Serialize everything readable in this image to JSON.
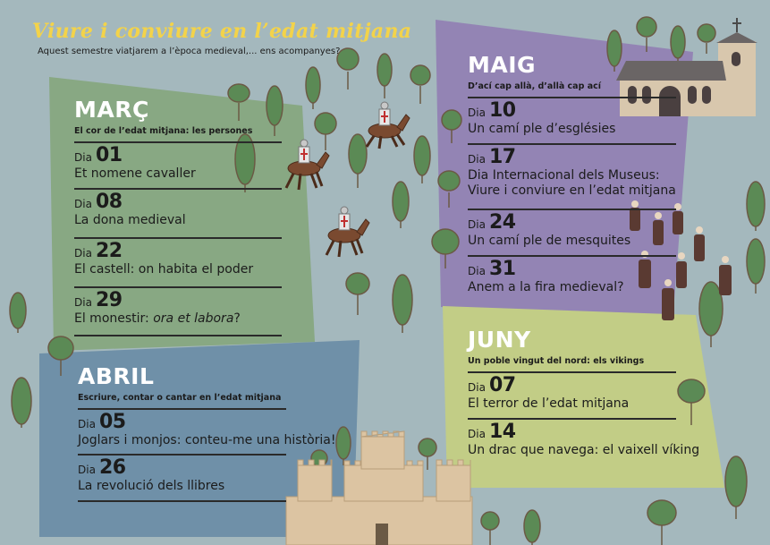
{
  "header": {
    "title": "Viure i conviure en l’edat mitjana",
    "subtitle": "Aquest semestre viatjarem a l’època medieval,... ens acompanyes?"
  },
  "colors": {
    "background": "#a4b8bd",
    "title": "#f3d34a",
    "marc_panel": "#88a883",
    "abril_panel": "#6f90a8",
    "maig_panel": "#9384b4",
    "juny_panel": "#c2cd86",
    "tree": "#5b8a55",
    "castle": "#dcc4a2"
  },
  "months": [
    {
      "name": "MARÇ",
      "theme": "El cor de l’edat mitjana: les persones",
      "entries": [
        {
          "dia": "Dia",
          "num": "01",
          "title": "Et nomene cavaller"
        },
        {
          "dia": "Dia",
          "num": "08",
          "title": "La dona medieval"
        },
        {
          "dia": "Dia",
          "num": "22",
          "title": "El castell: on habita el poder"
        },
        {
          "dia": "Dia",
          "num": "29",
          "title_pre": "El monestir: ",
          "title_em": "ora et labora",
          "title_post": "?"
        }
      ]
    },
    {
      "name": "ABRIL",
      "theme": "Escriure, contar o cantar en l’edat mitjana",
      "entries": [
        {
          "dia": "Dia",
          "num": "05",
          "title": "Joglars i monjos: conteu-me una història!"
        },
        {
          "dia": "Dia",
          "num": "26",
          "title": "La revolució dels llibres"
        }
      ]
    },
    {
      "name": "MAIG",
      "theme": "D’ací cap allà, d’allà cap ací",
      "entries": [
        {
          "dia": "Dia",
          "num": "10",
          "title": "Un camí ple d’esglésies"
        },
        {
          "dia": "Dia",
          "num": "17",
          "title": "Dia Internacional dels Museus:",
          "title2": "Viure i conviure en l’edat mitjana"
        },
        {
          "dia": "Dia",
          "num": "24",
          "title": "Un camí ple de mesquites"
        },
        {
          "dia": "Dia",
          "num": "31",
          "title": "Anem a la fira medieval?"
        }
      ]
    },
    {
      "name": "JUNY",
      "theme": "Un poble vingut del nord: els vikings",
      "entries": [
        {
          "dia": "Dia",
          "num": "07",
          "title": "El terror de l’edat mitjana"
        },
        {
          "dia": "Dia",
          "num": "14",
          "title": "Un drac que navega: el vaixell víking"
        }
      ]
    }
  ]
}
